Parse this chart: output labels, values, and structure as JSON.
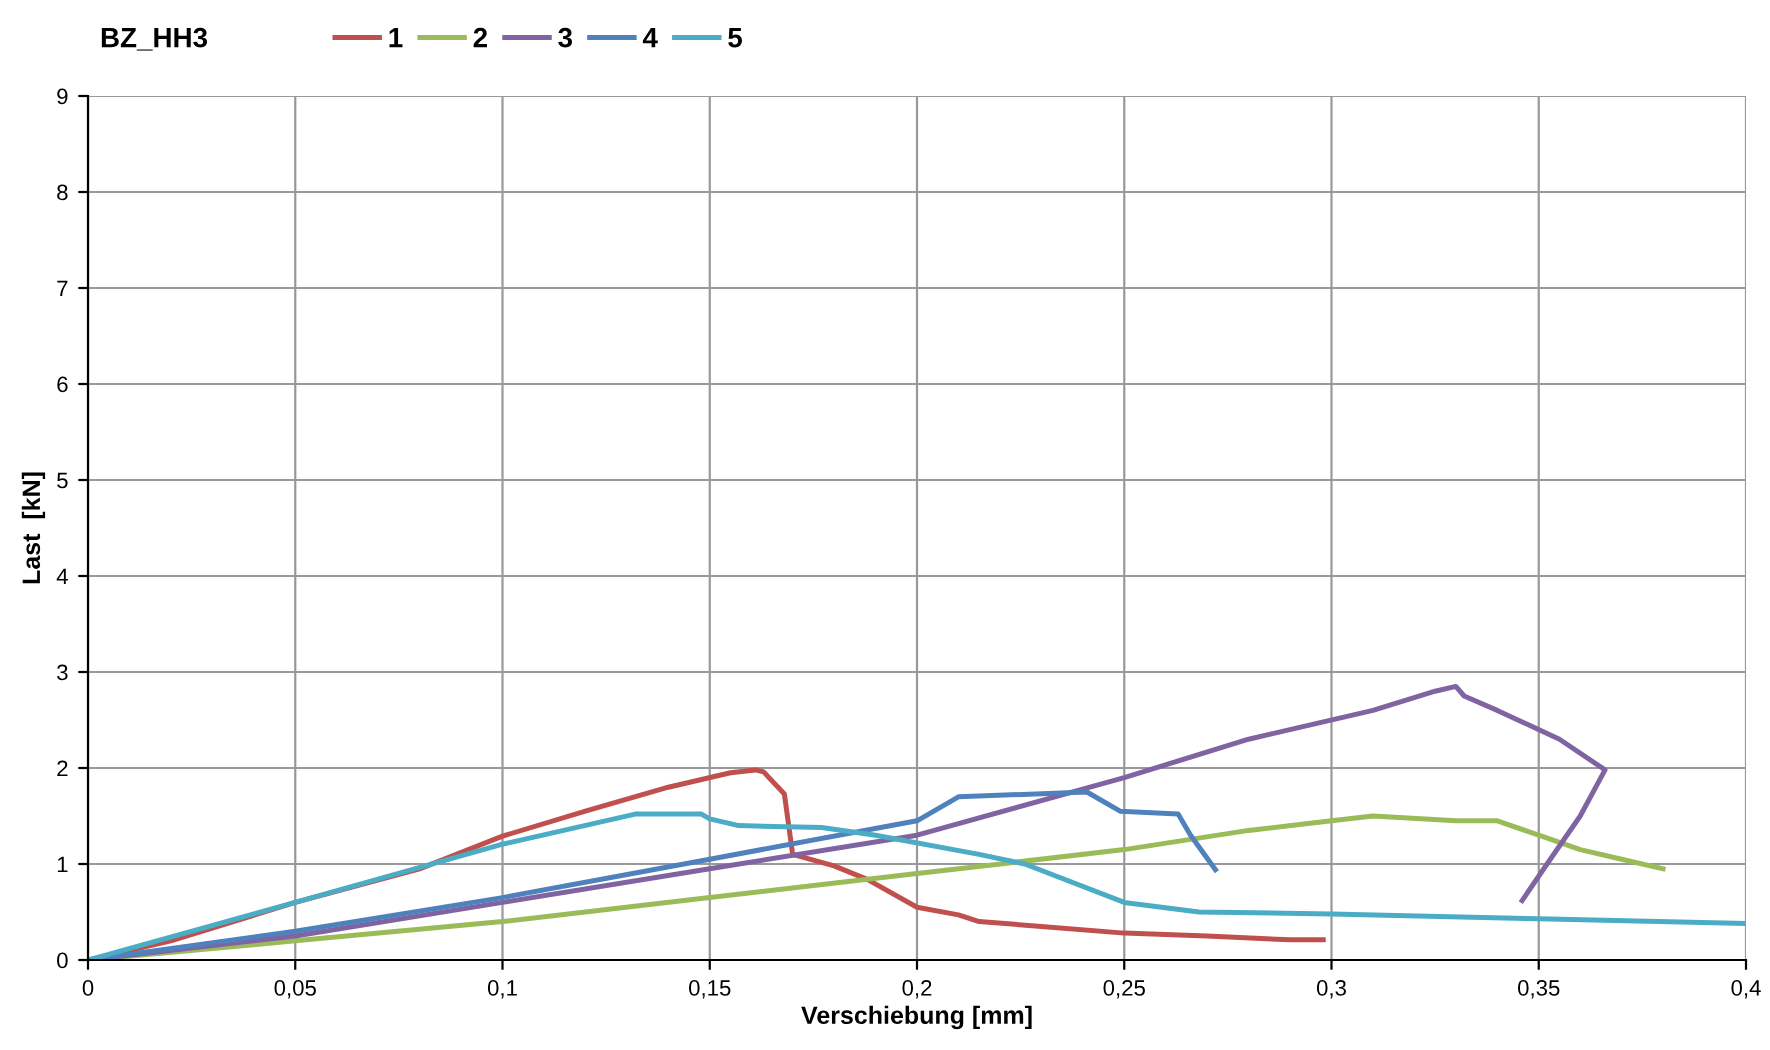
{
  "chart_data": {
    "type": "line",
    "title": "BZ_HH3",
    "xlabel": "Verschiebung [mm]",
    "ylabel": "Last  [kN]",
    "xlim": [
      0,
      0.4
    ],
    "xticks": [
      0,
      {
        "value": 0.05,
        "label": "0,05"
      },
      {
        "value": 0.1,
        "label": "0,1"
      },
      {
        "value": 0.15,
        "label": "0,15"
      },
      {
        "value": 0.2,
        "label": "0,2"
      },
      {
        "value": 0.25,
        "label": "0,25"
      },
      {
        "value": 0.3,
        "label": "0,3"
      },
      {
        "value": 0.35,
        "label": "0,35"
      },
      {
        "value": 0.4,
        "label": "0,4"
      }
    ],
    "ylim": [
      0,
      9
    ],
    "yticks": [
      0,
      1,
      2,
      3,
      4,
      5,
      6,
      7,
      8,
      9
    ],
    "grid": true,
    "legend": "top",
    "marker": "none",
    "line_style": "solid",
    "series": [
      {
        "name": "1",
        "color": "#c0504d",
        "x": [
          0,
          0.02,
          0.05,
          0.08,
          0.1,
          0.12,
          0.14,
          0.155,
          0.161,
          0.163,
          0.168,
          0.17,
          0.18,
          0.188,
          0.2,
          0.21,
          0.215,
          0.23,
          0.25,
          0.27,
          0.29,
          0.298
        ],
        "values": [
          0,
          0.2,
          0.6,
          0.95,
          1.29,
          1.55,
          1.8,
          1.95,
          1.98,
          1.96,
          1.73,
          1.1,
          0.98,
          0.84,
          0.55,
          0.47,
          0.4,
          0.35,
          0.28,
          0.25,
          0.21,
          0.21
        ]
      },
      {
        "name": "2",
        "color": "#9bbb59",
        "x": [
          0,
          0.05,
          0.1,
          0.15,
          0.2,
          0.25,
          0.28,
          0.3,
          0.31,
          0.33,
          0.34,
          0.35,
          0.36,
          0.37,
          0.38
        ],
        "values": [
          0,
          0.2,
          0.4,
          0.65,
          0.9,
          1.15,
          1.35,
          1.45,
          1.5,
          1.45,
          1.45,
          1.3,
          1.15,
          1.05,
          0.95
        ]
      },
      {
        "name": "3",
        "color": "#8064a2",
        "x": [
          0,
          0.05,
          0.1,
          0.15,
          0.2,
          0.25,
          0.28,
          0.31,
          0.325,
          0.33,
          0.332,
          0.34,
          0.355,
          0.366,
          0.36,
          0.352,
          0.346
        ],
        "values": [
          0,
          0.25,
          0.6,
          0.95,
          1.3,
          1.9,
          2.3,
          2.6,
          2.8,
          2.85,
          2.75,
          2.6,
          2.3,
          1.98,
          1.5,
          1.0,
          0.62
        ]
      },
      {
        "name": "4",
        "color": "#4f81bd",
        "x": [
          0,
          0.05,
          0.1,
          0.15,
          0.2,
          0.21,
          0.241,
          0.249,
          0.263,
          0.266,
          0.272
        ],
        "values": [
          0,
          0.3,
          0.65,
          1.05,
          1.45,
          1.7,
          1.75,
          1.55,
          1.52,
          1.3,
          0.94
        ]
      },
      {
        "name": "5",
        "color": "#4bacc6",
        "x": [
          0,
          0.05,
          0.0994,
          0.132,
          0.148,
          0.15,
          0.157,
          0.177,
          0.19,
          0.215,
          0.226,
          0.25,
          0.268,
          0.3,
          0.35,
          0.4
        ],
        "values": [
          0,
          0.6,
          1.2,
          1.52,
          1.52,
          1.47,
          1.4,
          1.38,
          1.3,
          1.1,
          1.0,
          0.6,
          0.5,
          0.48,
          0.43,
          0.38
        ]
      }
    ]
  }
}
